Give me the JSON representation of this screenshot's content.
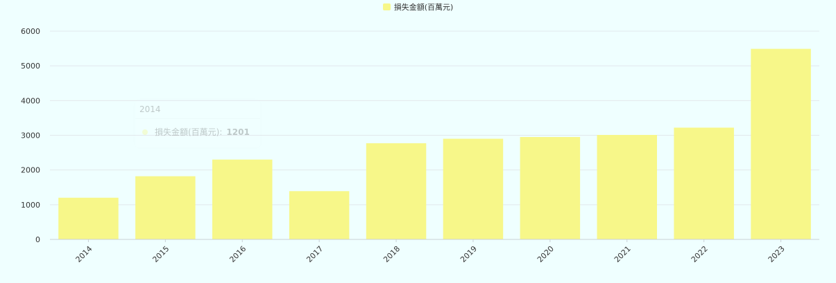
{
  "legend": {
    "label": "損失金額(百萬元)",
    "color": "#f7f789"
  },
  "tooltip": {
    "title": "2014",
    "series_label": "損失金額(百萬元):",
    "value": "1201"
  },
  "colors": {
    "background": "#efffff",
    "bar": "#f7f789",
    "grid": "#e2e8ec",
    "axis": "#c9d0d6"
  },
  "chart_data": {
    "type": "bar",
    "categories": [
      "2014",
      "2015",
      "2016",
      "2017",
      "2018",
      "2019",
      "2020",
      "2021",
      "2022",
      "2023"
    ],
    "series": [
      {
        "name": "損失金額(百萬元)",
        "values": [
          1201,
          1820,
          2300,
          1390,
          2770,
          2900,
          2950,
          3010,
          3220,
          5490
        ]
      }
    ],
    "title": "",
    "xlabel": "",
    "ylabel": "",
    "ylim": [
      0,
      6000
    ],
    "yticks": [
      0,
      1000,
      2000,
      3000,
      4000,
      5000,
      6000
    ],
    "grid": true,
    "legend_position": "top-center"
  }
}
